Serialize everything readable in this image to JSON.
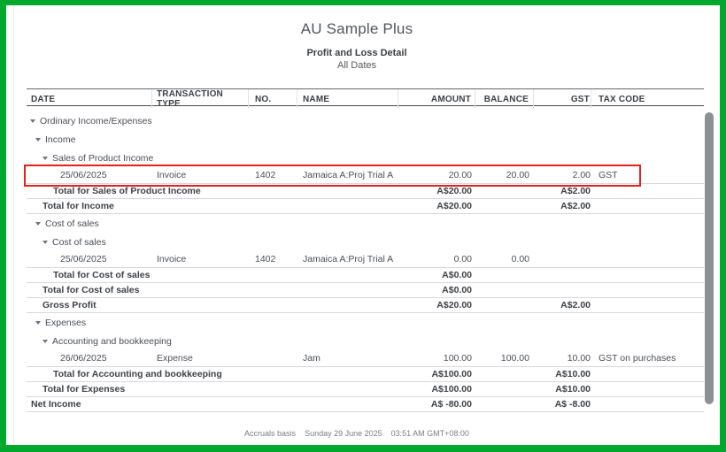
{
  "colors": {
    "frame_green": "#00A82E",
    "highlight_red": "#E3211F"
  },
  "report": {
    "company": "AU Sample Plus",
    "title": "Profit and Loss Detail",
    "date_range": "All Dates",
    "columns": [
      "DATE",
      "TRANSACTION TYPE",
      "NO.",
      "NAME",
      "AMOUNT",
      "BALANCE",
      "GST",
      "TAX CODE"
    ],
    "rows": [
      {
        "type": "group",
        "level": 1,
        "label": "Ordinary Income/Expenses",
        "icon": "collapse-triangle-icon"
      },
      {
        "type": "group",
        "level": 2,
        "label": "Income",
        "icon": "collapse-triangle-icon"
      },
      {
        "type": "group",
        "level": 3,
        "label": "Sales of Product Income",
        "icon": "collapse-triangle-icon"
      },
      {
        "type": "data",
        "date": "25/06/2025",
        "txn_type": "Invoice",
        "no": "1402",
        "name": "Jamaica A:Proj Trial A",
        "amount": "20.00",
        "balance": "20.00",
        "gst": "2.00",
        "tax_code": "GST",
        "highlighted": true
      },
      {
        "type": "total",
        "level": 3,
        "label": "Total for Sales of Product Income",
        "amount": "A$20.00",
        "gst": "A$2.00"
      },
      {
        "type": "total",
        "level": 2,
        "label": "Total for Income",
        "amount": "A$20.00",
        "gst": "A$2.00"
      },
      {
        "type": "group",
        "level": 2,
        "label": "Cost of sales",
        "icon": "collapse-triangle-icon"
      },
      {
        "type": "group",
        "level": 3,
        "label": "Cost of sales",
        "icon": "collapse-triangle-icon"
      },
      {
        "type": "data",
        "date": "25/06/2025",
        "txn_type": "Invoice",
        "no": "1402",
        "name": "Jamaica A:Proj Trial A",
        "amount": "0.00",
        "balance": "0.00",
        "gst": "",
        "tax_code": ""
      },
      {
        "type": "total",
        "level": 3,
        "label": "Total for Cost of sales",
        "amount": "A$0.00"
      },
      {
        "type": "total",
        "level": 2,
        "label": "Total for Cost of sales",
        "amount": "A$0.00"
      },
      {
        "type": "total",
        "level": 2,
        "label": "Gross Profit",
        "amount": "A$20.00",
        "gst": "A$2.00"
      },
      {
        "type": "group",
        "level": 2,
        "label": "Expenses",
        "icon": "collapse-triangle-icon"
      },
      {
        "type": "group",
        "level": 3,
        "label": "Accounting and bookkeeping",
        "icon": "collapse-triangle-icon"
      },
      {
        "type": "data",
        "date": "26/06/2025",
        "txn_type": "Expense",
        "no": "",
        "name": "Jam",
        "amount": "100.00",
        "balance": "100.00",
        "gst": "10.00",
        "tax_code": "GST on purchases"
      },
      {
        "type": "total",
        "level": 3,
        "label": "Total for Accounting and bookkeeping",
        "amount": "A$100.00",
        "gst": "A$10.00"
      },
      {
        "type": "total",
        "level": 2,
        "label": "Total for Expenses",
        "amount": "A$100.00",
        "gst": "A$10.00"
      },
      {
        "type": "total",
        "level": 0,
        "label": "Net Income",
        "amount": "A$ -80.00",
        "gst": "A$ -8.00"
      }
    ],
    "footer": {
      "basis": "Accruals basis",
      "date": "Sunday 29 June 2025",
      "time": "03:51 AM GMT+08:00"
    }
  }
}
